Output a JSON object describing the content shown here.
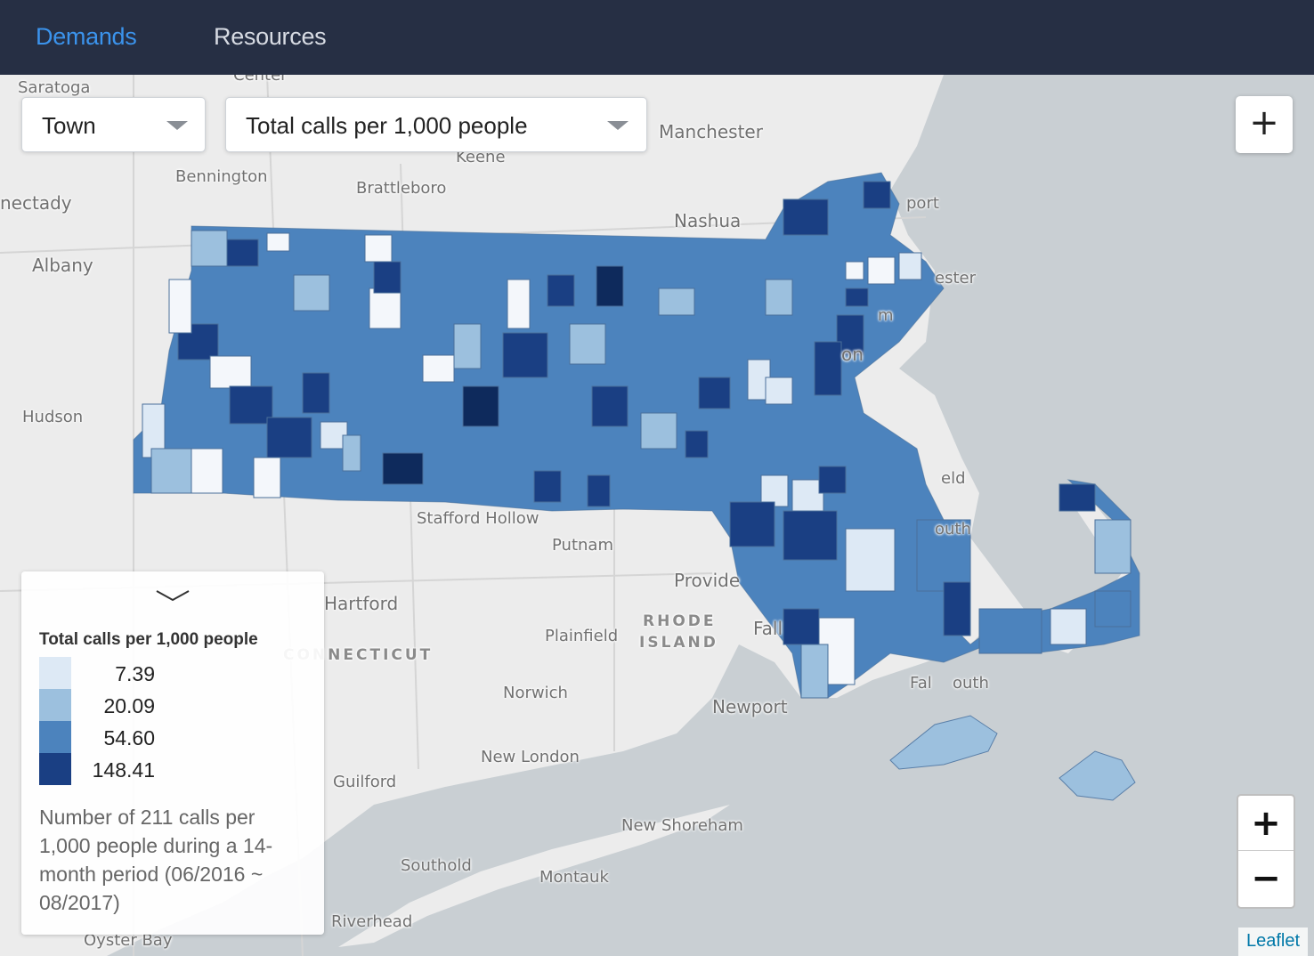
{
  "nav": {
    "tabs": [
      {
        "label": "Demands",
        "active": true
      },
      {
        "label": "Resources",
        "active": false
      }
    ]
  },
  "controls": {
    "geography_select": {
      "value": "Town"
    },
    "metric_select": {
      "value": "Total calls per 1,000 people"
    },
    "add_button": "+"
  },
  "map": {
    "place_labels": [
      "Saratoga",
      "Center",
      "Manchester",
      "Keene",
      "Bennington",
      "Brattleboro",
      "nectady",
      "Nashua",
      "Albany",
      "port",
      "ester",
      "m",
      "on",
      "Hudson",
      "eld",
      "outh",
      "Stafford Hollow",
      "Putnam",
      "Provide",
      "Hartford",
      "Plainfield",
      "Fall",
      "Norwich",
      "Newport",
      "Fal",
      "outh",
      "New London",
      "Guilford",
      "New Shoreham",
      "Southold",
      "Montauk",
      "Riverhead",
      "Oyster Bay"
    ],
    "state_labels": [
      "RHODE",
      "ISLAND",
      "CONNECTICUT"
    ],
    "colors": {
      "water": "#c9cfd3",
      "land": "#ececec",
      "class_1": "#dde9f5",
      "class_2": "#9cc0de",
      "class_3": "#4c83bd",
      "class_4": "#1a3f83"
    }
  },
  "legend": {
    "title": "Total calls per 1,000 people",
    "items": [
      {
        "value": "7.39",
        "color": "#dde9f5"
      },
      {
        "value": "20.09",
        "color": "#9cc0de"
      },
      {
        "value": "54.60",
        "color": "#4c83bd"
      },
      {
        "value": "148.41",
        "color": "#1a3f83"
      }
    ],
    "description": "Number of 211 calls per 1,000 people during a 14-month period (06/2016 ~ 08/2017)"
  },
  "zoom": {
    "in": "+",
    "out": "−"
  },
  "attribution": "Leaflet"
}
